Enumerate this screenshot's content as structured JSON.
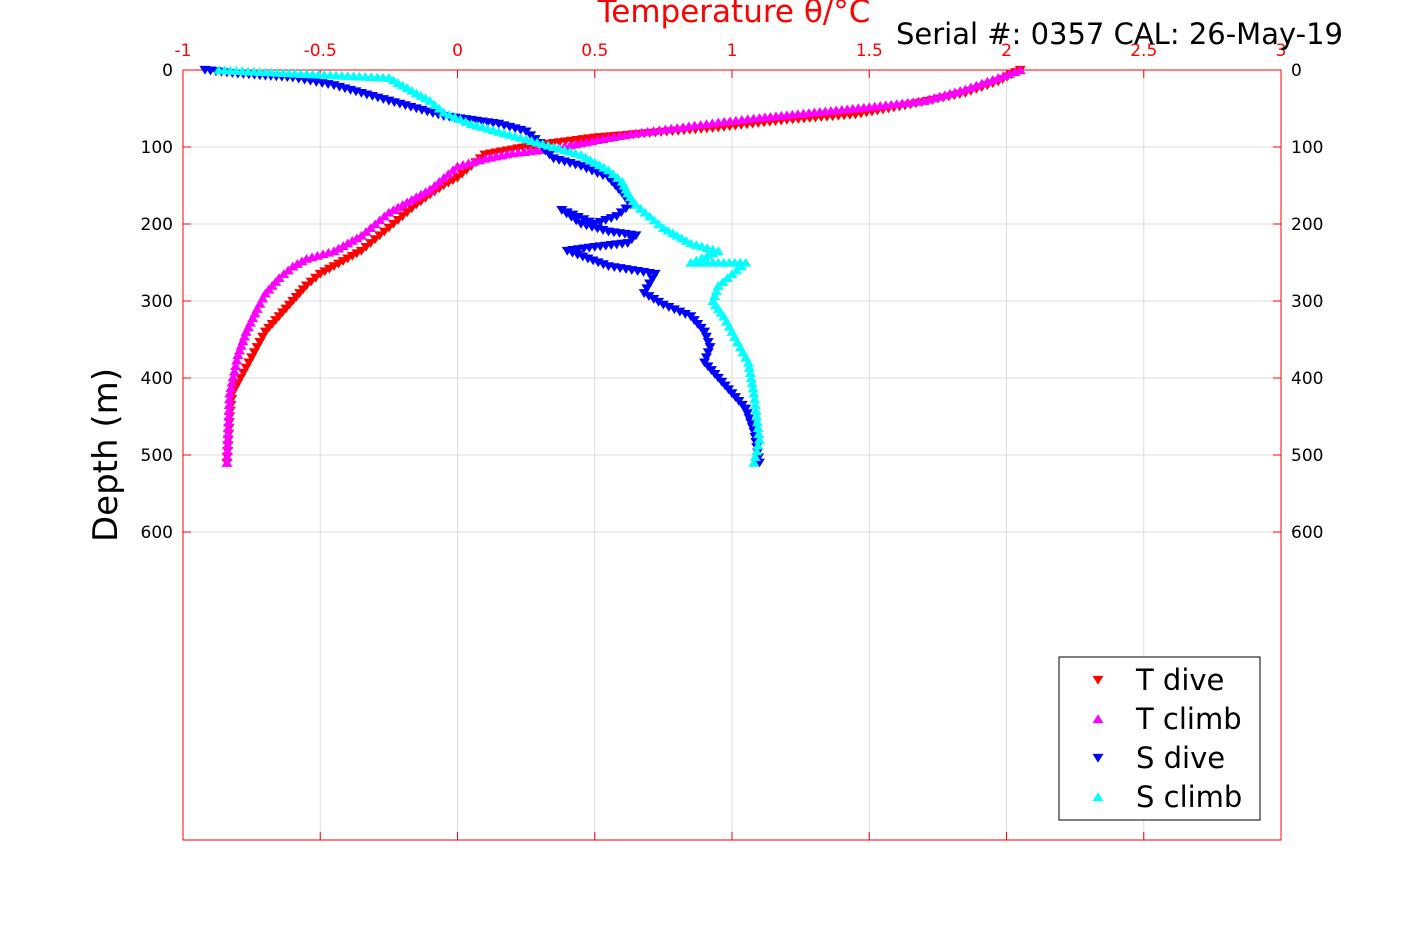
{
  "chart_data": {
    "type": "scatter",
    "title": "Temperature θ/°C",
    "annotation": "Serial #: 0357  CAL: 26-May-19",
    "xlabel": "Temperature θ/°C",
    "ylabel": "Depth (m)",
    "xlim": [
      -1,
      3
    ],
    "ylim": [
      0,
      1000
    ],
    "y_reversed": true,
    "x_ticks": [
      -1,
      -0.5,
      0,
      0.5,
      1,
      1.5,
      2,
      2.5,
      3
    ],
    "x_tick_labels": [
      "-1",
      "-0.5",
      "0",
      "0.5",
      "1",
      "1.5",
      "2",
      "2.5",
      "3"
    ],
    "y_ticks": [
      0,
      100,
      200,
      300,
      400,
      500,
      600
    ],
    "y_tick_labels": [
      "0",
      "100",
      "200",
      "300",
      "400",
      "500",
      "600"
    ],
    "grid": true,
    "legend_position": "bottom-right",
    "axis_color": "#ff0000",
    "series": [
      {
        "name": "T dive",
        "color": "#ff0000",
        "marker": "triangle-down",
        "x": [
          2.05,
          1.97,
          1.85,
          1.65,
          1.45,
          1.2,
          0.95,
          0.7,
          0.5,
          0.35,
          0.22,
          0.1,
          0.05,
          0.0,
          -0.05,
          -0.1,
          -0.15,
          -0.2,
          -0.25,
          -0.3,
          -0.35,
          -0.4,
          -0.45,
          -0.5,
          -0.55,
          -0.6,
          -0.65,
          -0.7,
          -0.73,
          -0.76,
          -0.79,
          -0.82,
          -0.83,
          -0.84
        ],
        "y": [
          0,
          15,
          30,
          45,
          58,
          65,
          75,
          82,
          88,
          95,
          102,
          110,
          125,
          140,
          150,
          162,
          175,
          190,
          205,
          220,
          235,
          245,
          255,
          265,
          280,
          300,
          320,
          340,
          360,
          380,
          400,
          420,
          450,
          510
        ]
      },
      {
        "name": "T climb",
        "color": "#ff00ff",
        "marker": "triangle-up",
        "x": [
          2.05,
          1.97,
          1.85,
          1.7,
          1.5,
          1.3,
          1.1,
          0.95,
          0.8,
          0.65,
          0.55,
          0.45,
          0.35,
          0.2,
          0.1,
          0.0,
          -0.05,
          -0.1,
          -0.15,
          -0.2,
          -0.25,
          -0.3,
          -0.35,
          -0.45,
          -0.55,
          -0.6,
          -0.65,
          -0.7,
          -0.73,
          -0.77,
          -0.8,
          -0.83,
          -0.84
        ],
        "y": [
          0,
          10,
          25,
          40,
          48,
          55,
          62,
          68,
          75,
          82,
          88,
          95,
          102,
          108,
          115,
          125,
          140,
          155,
          165,
          175,
          185,
          200,
          215,
          235,
          245,
          255,
          270,
          290,
          310,
          340,
          370,
          420,
          510
        ]
      },
      {
        "name": "S dive",
        "color": "#0000ff",
        "marker": "triangle-down",
        "x": [
          -0.92,
          -0.8,
          -0.6,
          -0.45,
          -0.35,
          -0.25,
          -0.15,
          -0.05,
          0.05,
          0.15,
          0.25,
          0.3,
          0.32,
          0.35,
          0.45,
          0.55,
          0.6,
          0.63,
          0.58,
          0.5,
          0.38,
          0.45,
          0.55,
          0.65,
          0.62,
          0.5,
          0.4,
          0.55,
          0.72,
          0.68,
          0.75,
          0.85,
          0.9,
          0.92,
          0.9,
          0.95,
          1.0,
          1.05,
          1.08,
          1.1
        ],
        "y": [
          0,
          5,
          10,
          20,
          30,
          40,
          50,
          60,
          65,
          70,
          80,
          95,
          105,
          115,
          125,
          140,
          160,
          175,
          190,
          200,
          182,
          200,
          210,
          215,
          225,
          230,
          235,
          255,
          265,
          290,
          305,
          320,
          340,
          360,
          380,
          400,
          420,
          440,
          470,
          510
        ]
      },
      {
        "name": "S climb",
        "color": "#00ffff",
        "marker": "triangle-up",
        "x": [
          -0.87,
          -0.25,
          -0.2,
          -0.15,
          -0.1,
          -0.05,
          0.05,
          0.15,
          0.25,
          0.35,
          0.45,
          0.5,
          0.55,
          0.6,
          0.62,
          0.65,
          0.7,
          0.75,
          0.8,
          0.85,
          0.95,
          0.85,
          1.05,
          1.0,
          0.95,
          0.93,
          0.97,
          1.0,
          1.03,
          1.06,
          1.08,
          1.1,
          1.08
        ],
        "y": [
          0,
          10,
          20,
          30,
          40,
          55,
          70,
          80,
          90,
          100,
          110,
          120,
          130,
          145,
          160,
          175,
          190,
          205,
          215,
          225,
          235,
          250,
          250,
          265,
          280,
          300,
          320,
          340,
          360,
          380,
          420,
          480,
          510
        ]
      }
    ]
  }
}
